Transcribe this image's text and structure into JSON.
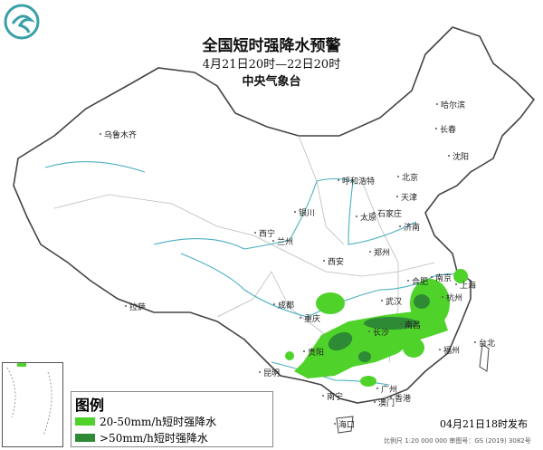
{
  "header": {
    "title": "全国短时强降水预警",
    "period": "4月21日20时—22日20时",
    "agency": "中央气象台"
  },
  "cities": [
    "乌鲁木齐",
    "哈尔滨",
    "长春",
    "沈阳",
    "呼和浩特",
    "北京",
    "天津",
    "银川",
    "太原",
    "石家庄",
    "济南",
    "西宁",
    "兰州",
    "郑州",
    "西安",
    "拉萨",
    "成都",
    "重庆",
    "合肥",
    "南京",
    "上海",
    "杭州",
    "武汉",
    "南昌",
    "长沙",
    "贵阳",
    "福州",
    "台北",
    "昆明",
    "南宁",
    "广州",
    "香港",
    "澳门",
    "海口"
  ],
  "legend": {
    "title": "图例",
    "items": [
      {
        "label": "20-50mm/h短时强降水",
        "color": "#4fd32a"
      },
      {
        "label": ">50mm/h短时强降水",
        "color": "#2e8a35"
      }
    ]
  },
  "issue_time": "04月21日18时发布",
  "footer": "比例尺 1:20 000 000    审图号：GS (2019) 3082号",
  "colors": {
    "border": "#444444",
    "river": "#4bb0c0",
    "province": "#bbbbbb"
  },
  "icons": {
    "logo": "cma-logo"
  }
}
